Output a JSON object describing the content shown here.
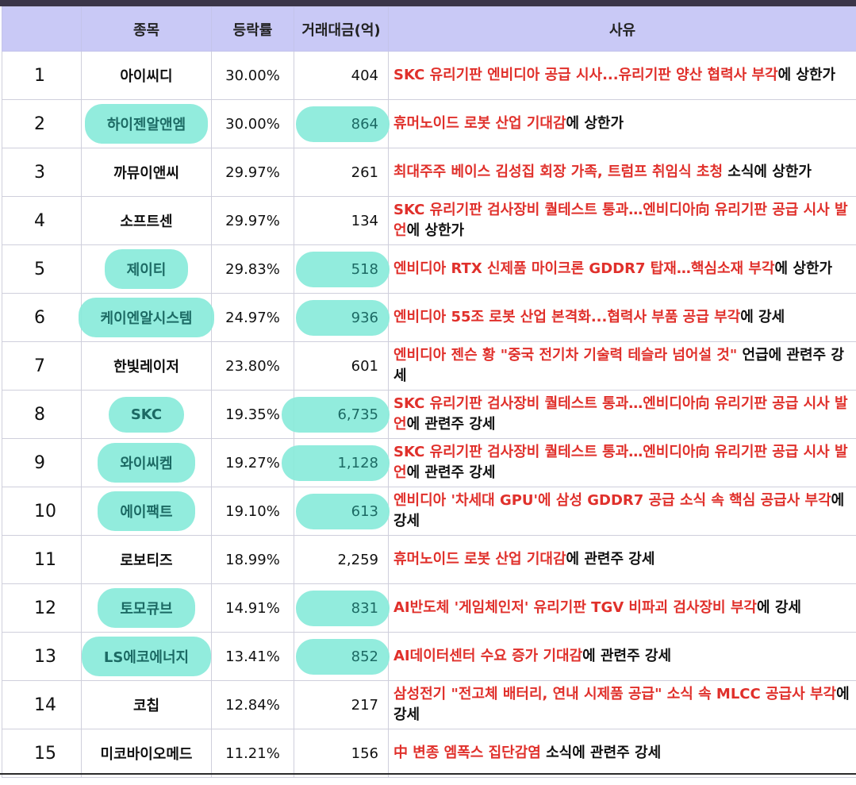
{
  "header": {
    "rank": "",
    "name": "종목",
    "rate": "등락률",
    "amount": "거래대금(억)",
    "reason": "사유"
  },
  "rows": [
    {
      "rank": "1",
      "name": "아이씨디",
      "rate": "30.00%",
      "amount": "404",
      "highlighted": false,
      "reason_red": "SKC 유리기판 엔비디아 공급 시사...유리기판 양산 협력사 부각",
      "reason_black": "에 상한가"
    },
    {
      "rank": "2",
      "name": "하이젠알앤엠",
      "rate": "30.00%",
      "amount": "864",
      "highlighted": true,
      "reason_red": "휴머노이드 로봇 산업 기대감",
      "reason_black": "에 상한가"
    },
    {
      "rank": "3",
      "name": "까뮤이앤씨",
      "rate": "29.97%",
      "amount": "261",
      "highlighted": false,
      "reason_red": "최대주주 베이스 김성집 회장 가족, 트럼프 취임식 초청",
      "reason_black": " 소식에 상한가"
    },
    {
      "rank": "4",
      "name": "소프트센",
      "rate": "29.97%",
      "amount": "134",
      "highlighted": false,
      "reason_red": "SKC 유리기판 검사장비 퀄테스트 통과…엔비디아向 유리기판 공급 시사 발언",
      "reason_black": "에 상한가"
    },
    {
      "rank": "5",
      "name": "제이티",
      "rate": "29.83%",
      "amount": "518",
      "highlighted": true,
      "reason_red": "엔비디아 RTX 신제품 마이크론 GDDR7 탑재…핵심소재 부각",
      "reason_black": "에 상한가"
    },
    {
      "rank": "6",
      "name": "케이엔알시스템",
      "rate": "24.97%",
      "amount": "936",
      "highlighted": true,
      "reason_red": "엔비디아 55조 로봇 산업 본격화...협력사 부품 공급 부각",
      "reason_black": "에 강세"
    },
    {
      "rank": "7",
      "name": "한빛레이저",
      "rate": "23.80%",
      "amount": "601",
      "highlighted": false,
      "reason_red": "엔비디아 젠슨 황 \"중국 전기차 기술력 테슬라 넘어설 것\"",
      "reason_black": " 언급에 관련주 강세"
    },
    {
      "rank": "8",
      "name": "SKC",
      "rate": "19.35%",
      "amount": "6,735",
      "highlighted": true,
      "reason_red": "SKC 유리기판 검사장비 퀄테스트 통과…엔비디아向 유리기판 공급 시사 발언",
      "reason_black": "에 관련주 강세"
    },
    {
      "rank": "9",
      "name": "와이씨켐",
      "rate": "19.27%",
      "amount": "1,128",
      "highlighted": true,
      "reason_red": "SKC 유리기판 검사장비 퀄테스트 통과…엔비디아向 유리기판 공급 시사 발언",
      "reason_black": "에 관련주 강세"
    },
    {
      "rank": "10",
      "name": "에이팩트",
      "rate": "19.10%",
      "amount": "613",
      "highlighted": true,
      "reason_red": "엔비디아 '차세대 GPU'에 삼성 GDDR7 공급 소식 속 핵심 공급사 부각",
      "reason_black": "에 강세"
    },
    {
      "rank": "11",
      "name": "로보티즈",
      "rate": "18.99%",
      "amount": "2,259",
      "highlighted": false,
      "reason_red": "휴머노이드 로봇 산업 기대감",
      "reason_black": "에 관련주 강세"
    },
    {
      "rank": "12",
      "name": "토모큐브",
      "rate": "14.91%",
      "amount": "831",
      "highlighted": true,
      "reason_red": "AI반도체 '게임체인저' 유리기판 TGV 비파괴 검사장비 부각",
      "reason_black": "에 강세"
    },
    {
      "rank": "13",
      "name": "LS에코에너지",
      "rate": "13.41%",
      "amount": "852",
      "highlighted": true,
      "reason_red": "AI데이터센터 수요 증가 기대감",
      "reason_black": "에 관련주 강세"
    },
    {
      "rank": "14",
      "name": "코칩",
      "rate": "12.84%",
      "amount": "217",
      "highlighted": false,
      "reason_red": "삼성전기 \"전고체 배터리, 연내 시제품 공급\" 소식 속  MLCC 공급사 부각",
      "reason_black": "에 강세"
    },
    {
      "rank": "15",
      "name": "미코바이오메드",
      "rate": "11.21%",
      "amount": "156",
      "highlighted": false,
      "reason_red": "中 변종 엠폭스 집단감염",
      "reason_black": " 소식에 관련주 강세"
    }
  ],
  "colors": {
    "header_bg": "#c9c9f6",
    "reason_red": "#e0302b",
    "highlight": "#86ead9"
  }
}
